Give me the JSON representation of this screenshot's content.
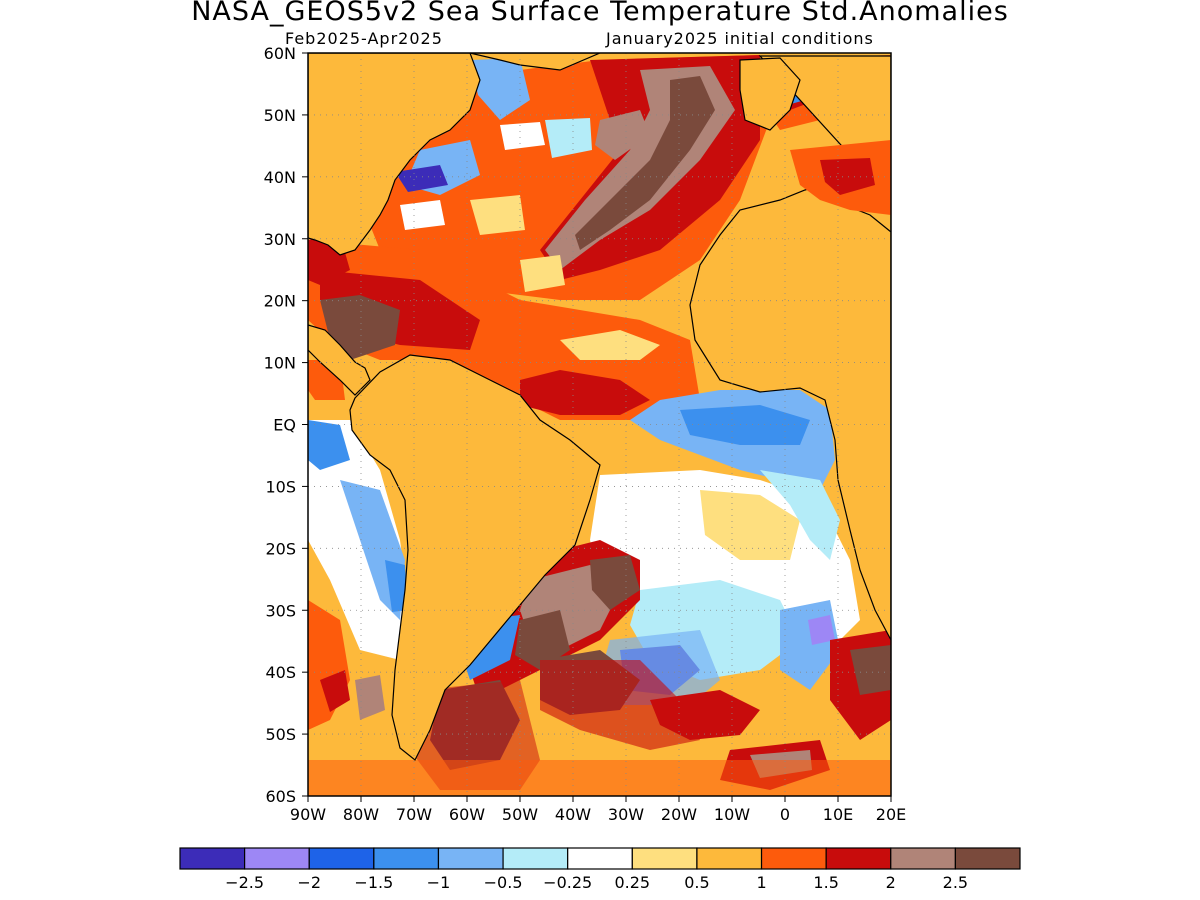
{
  "figure": {
    "title": "NASA_GEOS5v2 Sea Surface Temperature Std.Anomalies",
    "subtitle_left": "Feb2025-Apr2025",
    "subtitle_right": "January2025 initial conditions"
  },
  "map": {
    "lat_ticks": [
      "60N",
      "50N",
      "40N",
      "30N",
      "20N",
      "10N",
      "EQ",
      "10S",
      "20S",
      "30S",
      "40S",
      "50S",
      "60S"
    ],
    "lon_ticks": [
      "90W",
      "80W",
      "70W",
      "60W",
      "50W",
      "40W",
      "30W",
      "20W",
      "10W",
      "0",
      "10E",
      "20E"
    ],
    "lat_range": [
      -60,
      60
    ],
    "lon_range": [
      -90,
      20
    ],
    "gridlines": "dotted",
    "land_color": "#fdb93b"
  },
  "colorbar": {
    "colors": [
      "#3c2cb8",
      "#9d87f5",
      "#1e63e8",
      "#3c90ee",
      "#78b4f5",
      "#b4ecf8",
      "#ffffff",
      "#fedf7f",
      "#fdb93b",
      "#fd5b0c",
      "#c80c0c",
      "#b08478",
      "#7a4a3c"
    ],
    "labels": [
      "-2.5",
      "-2",
      "-1.5",
      "-1",
      "-0.5",
      "-0.25",
      "0.25",
      "0.5",
      "1",
      "1.5",
      "2",
      "2.5"
    ]
  }
}
